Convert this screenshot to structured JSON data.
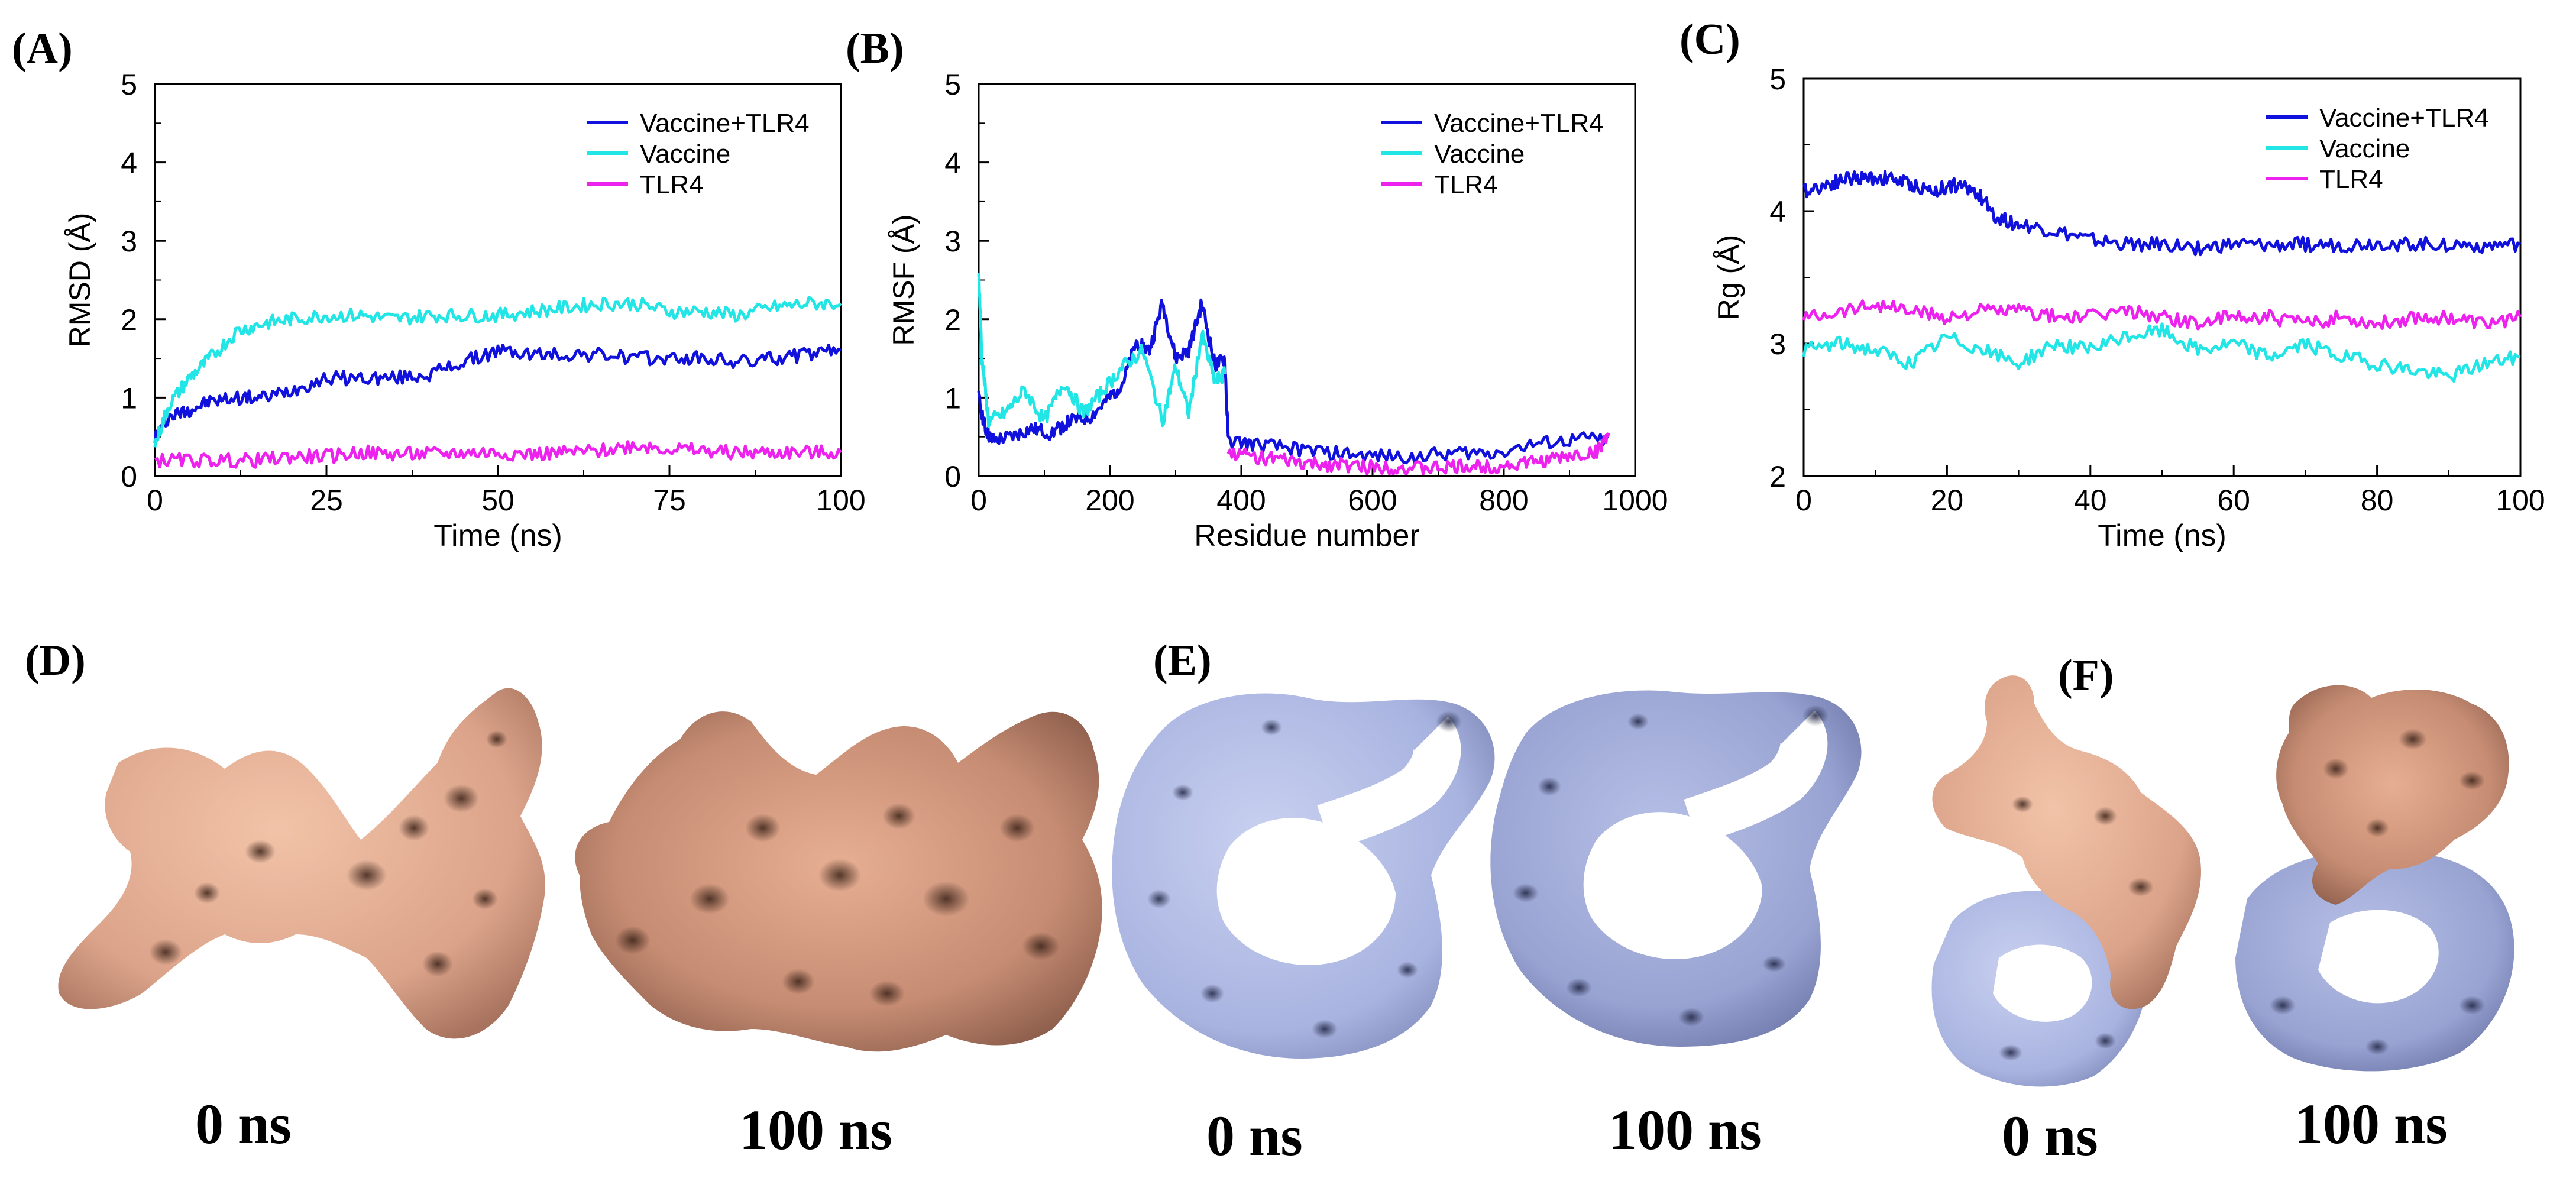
{
  "panels": {
    "a": "(A)",
    "b": "(B)",
    "c": "(C)",
    "d": "(D)",
    "e": "(E)",
    "f": "(F)"
  },
  "structures": {
    "d_start": "0 ns",
    "d_end": "100 ns",
    "e_start": "0 ns",
    "e_end": "100 ns",
    "f_start": "0 ns",
    "f_end": "100 ns"
  },
  "colors": {
    "vaccine_tlr4": "#1111dd",
    "vaccine": "#22e5e5",
    "tlr4": "#ee22ee",
    "vaccine_surface": "#e8b49a",
    "tlr4_surface": "#b3bde6"
  },
  "chart_data": [
    {
      "type": "line",
      "panel": "(A)",
      "title": "",
      "xlabel": "Time (ns)",
      "ylabel": "RMSD (Å)",
      "xlim": [
        0,
        100
      ],
      "ylim": [
        0,
        5
      ],
      "xticks": [
        "0",
        "25",
        "50",
        "75",
        "100"
      ],
      "yticks": [
        "0",
        "1",
        "2",
        "3",
        "4",
        "5"
      ],
      "legend_position": "top-right",
      "series": [
        {
          "name": "Vaccine+TLR4",
          "color": "#1111dd",
          "x": [
            0,
            2,
            5,
            8,
            12,
            16,
            20,
            25,
            30,
            35,
            40,
            45,
            50,
            55,
            60,
            65,
            70,
            75,
            80,
            85,
            90,
            95,
            100
          ],
          "y": [
            0.5,
            0.75,
            0.85,
            0.95,
            1.0,
            1.0,
            1.1,
            1.25,
            1.25,
            1.25,
            1.3,
            1.45,
            1.6,
            1.55,
            1.55,
            1.55,
            1.5,
            1.5,
            1.5,
            1.45,
            1.5,
            1.55,
            1.6
          ]
        },
        {
          "name": "Vaccine",
          "color": "#22e5e5",
          "x": [
            0,
            2,
            5,
            8,
            12,
            16,
            20,
            25,
            30,
            35,
            40,
            45,
            50,
            55,
            60,
            65,
            70,
            75,
            80,
            85,
            90,
            95,
            100
          ],
          "y": [
            0.4,
            0.9,
            1.25,
            1.5,
            1.85,
            1.95,
            2.0,
            2.05,
            2.05,
            2.0,
            2.05,
            2.05,
            2.05,
            2.1,
            2.15,
            2.2,
            2.2,
            2.1,
            2.1,
            2.05,
            2.15,
            2.2,
            2.2
          ]
        },
        {
          "name": "TLR4",
          "color": "#ee22ee",
          "x": [
            0,
            5,
            10,
            15,
            20,
            25,
            30,
            35,
            40,
            45,
            50,
            55,
            60,
            65,
            70,
            75,
            80,
            85,
            90,
            95,
            100
          ],
          "y": [
            0.2,
            0.2,
            0.2,
            0.2,
            0.25,
            0.25,
            0.3,
            0.28,
            0.28,
            0.3,
            0.3,
            0.28,
            0.3,
            0.32,
            0.4,
            0.35,
            0.32,
            0.3,
            0.3,
            0.3,
            0.3
          ]
        }
      ]
    },
    {
      "type": "line",
      "panel": "(B)",
      "title": "",
      "xlabel": "Residue number",
      "ylabel": "RMSF (Å)",
      "xlim": [
        0,
        1000
      ],
      "ylim": [
        0,
        5
      ],
      "xticks": [
        "0",
        "200",
        "400",
        "600",
        "800",
        "1000"
      ],
      "yticks": [
        "0",
        "1",
        "2",
        "3",
        "4",
        "5"
      ],
      "legend_position": "top-right",
      "series": [
        {
          "name": "Vaccine+TLR4",
          "color": "#1111dd",
          "x": [
            0,
            10,
            20,
            50,
            80,
            110,
            140,
            170,
            200,
            220,
            240,
            260,
            280,
            300,
            320,
            340,
            360,
            375,
            380,
            420,
            480,
            540,
            600,
            660,
            720,
            780,
            840,
            900,
            960
          ],
          "y": [
            1.0,
            0.6,
            0.45,
            0.5,
            0.6,
            0.55,
            0.7,
            0.75,
            1.0,
            1.2,
            1.7,
            1.6,
            2.2,
            1.5,
            1.6,
            2.2,
            1.4,
            1.5,
            0.45,
            0.4,
            0.35,
            0.3,
            0.25,
            0.25,
            0.3,
            0.3,
            0.4,
            0.45,
            0.5
          ]
        },
        {
          "name": "Vaccine",
          "color": "#22e5e5",
          "x": [
            0,
            5,
            15,
            40,
            70,
            100,
            130,
            160,
            190,
            220,
            250,
            280,
            300,
            320,
            340,
            360,
            375
          ],
          "y": [
            2.6,
            1.5,
            0.7,
            0.8,
            1.1,
            0.7,
            1.2,
            0.8,
            1.1,
            1.4,
            1.6,
            0.7,
            1.4,
            0.8,
            1.8,
            1.2,
            1.3
          ]
        },
        {
          "name": "TLR4",
          "color": "#ee22ee",
          "x": [
            380,
            420,
            460,
            500,
            540,
            580,
            620,
            660,
            700,
            740,
            780,
            820,
            860,
            900,
            940,
            960
          ],
          "y": [
            0.3,
            0.25,
            0.2,
            0.15,
            0.15,
            0.12,
            0.12,
            0.1,
            0.1,
            0.12,
            0.12,
            0.15,
            0.2,
            0.25,
            0.3,
            0.55
          ]
        }
      ]
    },
    {
      "type": "line",
      "panel": "(C)",
      "title": "",
      "xlabel": "Time (ns)",
      "ylabel": "Rg (Å)",
      "xlim": [
        0,
        100
      ],
      "ylim": [
        2,
        5
      ],
      "xticks": [
        "0",
        "20",
        "40",
        "60",
        "80",
        "100"
      ],
      "yticks": [
        "2",
        "3",
        "4",
        "5"
      ],
      "legend_position": "top-right",
      "series": [
        {
          "name": "Vaccine+TLR4",
          "color": "#1111dd",
          "x": [
            0,
            3,
            6,
            9,
            12,
            15,
            18,
            21,
            24,
            27,
            30,
            35,
            40,
            45,
            50,
            55,
            60,
            65,
            70,
            75,
            80,
            85,
            90,
            95,
            100
          ],
          "y": [
            4.15,
            4.2,
            4.25,
            4.25,
            4.25,
            4.2,
            4.15,
            4.2,
            4.15,
            3.95,
            3.9,
            3.85,
            3.78,
            3.75,
            3.75,
            3.72,
            3.75,
            3.74,
            3.75,
            3.74,
            3.76,
            3.75,
            3.75,
            3.74,
            3.75
          ]
        },
        {
          "name": "Vaccine",
          "color": "#22e5e5",
          "x": [
            0,
            5,
            10,
            15,
            20,
            25,
            30,
            35,
            40,
            45,
            50,
            55,
            60,
            65,
            70,
            75,
            80,
            85,
            90,
            95,
            100
          ],
          "y": [
            2.95,
            3.0,
            2.95,
            2.85,
            3.05,
            2.95,
            2.85,
            3.0,
            2.95,
            3.05,
            3.1,
            2.95,
            3.0,
            2.9,
            3.0,
            2.9,
            2.85,
            2.8,
            2.75,
            2.85,
            2.9
          ]
        },
        {
          "name": "TLR4",
          "color": "#ee22ee",
          "x": [
            0,
            5,
            10,
            15,
            20,
            25,
            30,
            35,
            40,
            45,
            50,
            55,
            60,
            65,
            70,
            75,
            80,
            85,
            90,
            95,
            100
          ],
          "y": [
            3.2,
            3.25,
            3.3,
            3.25,
            3.2,
            3.25,
            3.25,
            3.2,
            3.2,
            3.25,
            3.2,
            3.15,
            3.2,
            3.2,
            3.15,
            3.2,
            3.15,
            3.2,
            3.2,
            3.15,
            3.2
          ]
        }
      ]
    }
  ]
}
